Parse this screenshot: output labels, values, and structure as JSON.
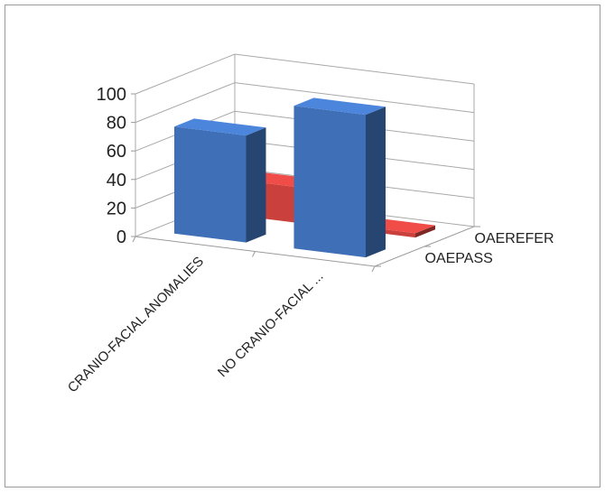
{
  "chart_data": {
    "type": "bar",
    "style": "3d-column",
    "categories": [
      "CRANIO-FACIAL ANOMALIES",
      "NO CRANIO-FACIAL ..."
    ],
    "series": [
      {
        "name": "OAEPASS",
        "values": [
          75,
          100
        ],
        "color": "#3f6fb7"
      },
      {
        "name": "OAEREFER",
        "values": [
          25,
          3
        ],
        "color": "#c9403c"
      }
    ],
    "yticks": [
      0,
      20,
      40,
      60,
      80,
      100
    ],
    "ylim": [
      0,
      100
    ],
    "grid": true,
    "legend": "series labels on depth axis (right)"
  }
}
